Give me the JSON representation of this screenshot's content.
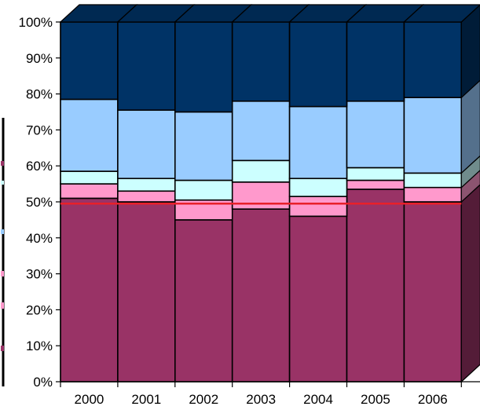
{
  "chart_data": {
    "type": "bar",
    "stacked": true,
    "three_d": true,
    "categories": [
      "2000",
      "2001",
      "2002",
      "2003",
      "2004",
      "2005",
      "2006"
    ],
    "y_tick_labels": [
      "0%",
      "10%",
      "20%",
      "30%",
      "40%",
      "50%",
      "60%",
      "70%",
      "80%",
      "90%",
      "100%"
    ],
    "ylim": [
      0,
      100
    ],
    "y_unit": "%",
    "legend": "none",
    "reference_line": {
      "value": 49.5,
      "color": "#e8202a"
    },
    "series": [
      {
        "color": "#993366",
        "values": [
          51,
          50,
          45,
          48,
          46,
          53.5,
          50
        ]
      },
      {
        "color": "#ff99cc",
        "values": [
          4,
          3,
          5.5,
          7.5,
          5.5,
          2.5,
          4
        ]
      },
      {
        "color": "#ccffff",
        "values": [
          3.5,
          3.5,
          5.5,
          6,
          5,
          3.5,
          4
        ]
      },
      {
        "color": "#99ccff",
        "values": [
          20,
          19,
          19,
          16.5,
          20,
          18.5,
          21
        ]
      },
      {
        "color": "#003366",
        "values": [
          21.5,
          24.5,
          25,
          22,
          23.5,
          22,
          21
        ]
      }
    ]
  }
}
